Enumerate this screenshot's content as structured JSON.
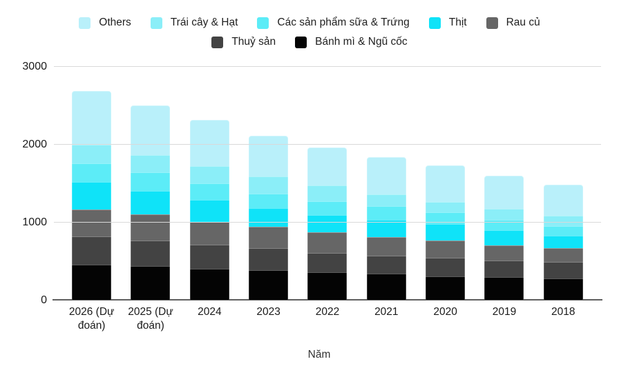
{
  "chart_data": {
    "type": "bar",
    "stacked": true,
    "xlabel": "Năm",
    "ylabel": "",
    "ylim": [
      0,
      3000
    ],
    "yticks": [
      0,
      1000,
      2000,
      3000
    ],
    "grid": true,
    "legend_position": "top",
    "categories": [
      "2026 (Dự đoán)",
      "2025 (Dự đoán)",
      "2024",
      "2023",
      "2022",
      "2021",
      "2020",
      "2019",
      "2018"
    ],
    "series": [
      {
        "name": "Bánh mì & Ngũ cốc",
        "color": "#040404",
        "values": [
          450,
          435,
          395,
          380,
          350,
          335,
          305,
          290,
          275
        ]
      },
      {
        "name": "Thuỷ sản",
        "color": "#434343",
        "values": [
          360,
          330,
          310,
          280,
          250,
          235,
          235,
          215,
          210
        ]
      },
      {
        "name": "Rau củ",
        "color": "#666666",
        "values": [
          350,
          330,
          295,
          280,
          265,
          235,
          220,
          195,
          180
        ]
      },
      {
        "name": "Thịt",
        "color": "#0fe3f8",
        "values": [
          350,
          300,
          280,
          240,
          225,
          225,
          215,
          190,
          160
        ]
      },
      {
        "name": "Các sản phẩm sữa & Trứng",
        "color": "#5cecf7",
        "values": [
          240,
          245,
          220,
          180,
          175,
          170,
          145,
          140,
          120
        ]
      },
      {
        "name": "Trái cây & Hạt",
        "color": "#8beef8",
        "values": [
          240,
          215,
          220,
          220,
          200,
          150,
          140,
          135,
          135
        ]
      },
      {
        "name": "Others",
        "color": "#b9f0fa",
        "values": [
          690,
          645,
          590,
          530,
          495,
          485,
          465,
          430,
          395
        ]
      }
    ],
    "totals": [
      2680,
      2500,
      2310,
      2110,
      1960,
      1835,
      1725,
      1595,
      1475
    ],
    "legend_rows": [
      [
        "Others",
        "Trái cây & Hạt",
        "Các sản phẩm sữa & Trứng",
        "Thịt",
        "Rau củ"
      ],
      [
        "Thuỷ sản",
        "Bánh mì & Ngũ cốc"
      ]
    ],
    "colors": {
      "gridline": "#d9d9d9",
      "axis_line": "#5f5f5f",
      "tick_text": "#1a1a1a",
      "axis_title_text": "#333333",
      "background": "#ffffff"
    }
  }
}
